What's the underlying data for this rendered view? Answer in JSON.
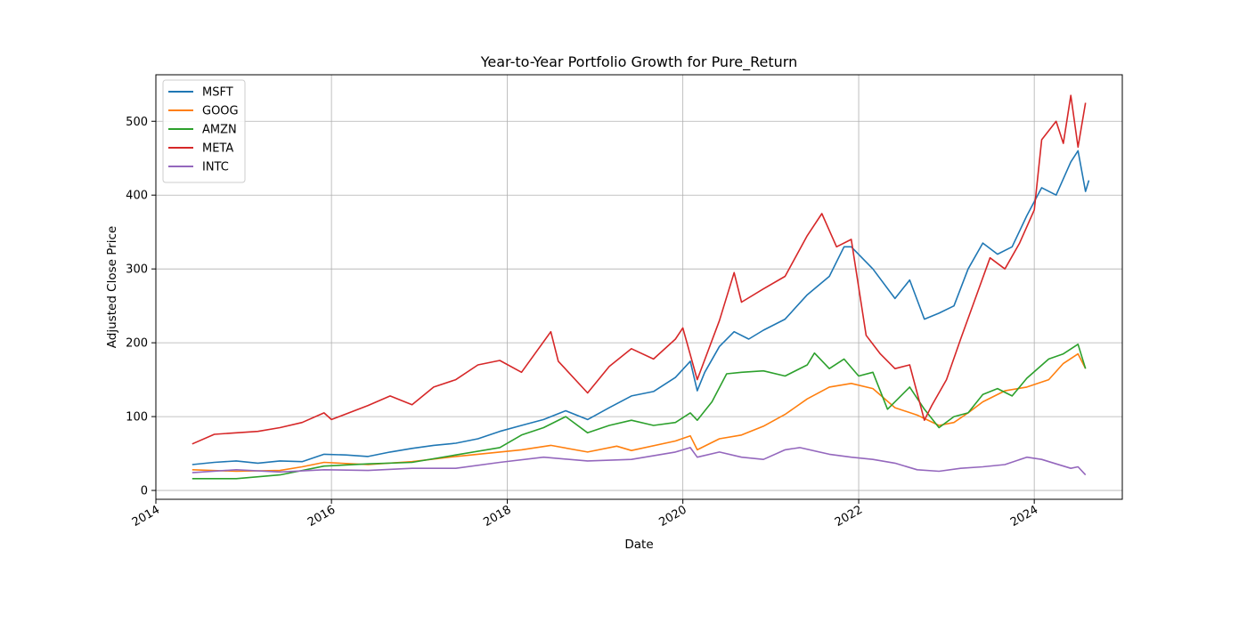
{
  "chart_data": {
    "type": "line",
    "title": "Year-to-Year Portfolio Growth for Pure_Return",
    "xlabel": "Date",
    "ylabel": "Adjusted Close Price",
    "xlim": [
      "2014-01-01",
      "2025-01-01"
    ],
    "ylim": [
      -12,
      563
    ],
    "x_ticks": [
      "2014",
      "2016",
      "2018",
      "2020",
      "2022",
      "2024"
    ],
    "y_ticks": [
      0,
      100,
      200,
      300,
      400,
      500
    ],
    "grid": true,
    "legend_position": "upper-left",
    "series": [
      {
        "name": "MSFT",
        "color": "#1f77b4",
        "points": [
          [
            "2014-06",
            35
          ],
          [
            "2014-09",
            38
          ],
          [
            "2014-12",
            40
          ],
          [
            "2015-03",
            37
          ],
          [
            "2015-06",
            40
          ],
          [
            "2015-09",
            39
          ],
          [
            "2015-12",
            49
          ],
          [
            "2016-03",
            48
          ],
          [
            "2016-06",
            46
          ],
          [
            "2016-09",
            52
          ],
          [
            "2016-12",
            57
          ],
          [
            "2017-03",
            61
          ],
          [
            "2017-06",
            64
          ],
          [
            "2017-09",
            70
          ],
          [
            "2017-12",
            80
          ],
          [
            "2018-03",
            88
          ],
          [
            "2018-06",
            96
          ],
          [
            "2018-09",
            108
          ],
          [
            "2018-12",
            96
          ],
          [
            "2019-03",
            112
          ],
          [
            "2019-06",
            128
          ],
          [
            "2019-09",
            134
          ],
          [
            "2019-12",
            153
          ],
          [
            "2020-02",
            175
          ],
          [
            "2020-03",
            135
          ],
          [
            "2020-04",
            160
          ],
          [
            "2020-06",
            195
          ],
          [
            "2020-08",
            215
          ],
          [
            "2020-10",
            205
          ],
          [
            "2020-12",
            217
          ],
          [
            "2021-03",
            232
          ],
          [
            "2021-06",
            265
          ],
          [
            "2021-09",
            290
          ],
          [
            "2021-11",
            330
          ],
          [
            "2021-12",
            330
          ],
          [
            "2022-03",
            300
          ],
          [
            "2022-06",
            260
          ],
          [
            "2022-08",
            285
          ],
          [
            "2022-10",
            232
          ],
          [
            "2022-12",
            240
          ],
          [
            "2023-02",
            250
          ],
          [
            "2023-04",
            300
          ],
          [
            "2023-06",
            335
          ],
          [
            "2023-08",
            320
          ],
          [
            "2023-10",
            330
          ],
          [
            "2023-12",
            372
          ],
          [
            "2024-02",
            410
          ],
          [
            "2024-04",
            400
          ],
          [
            "2024-06",
            445
          ],
          [
            "2024-07",
            460
          ],
          [
            "2024-08",
            405
          ],
          [
            "2024-08-15",
            420
          ]
        ]
      },
      {
        "name": "GOOG",
        "color": "#ff7f0e",
        "points": [
          [
            "2014-06",
            28
          ],
          [
            "2014-12",
            26
          ],
          [
            "2015-06",
            27
          ],
          [
            "2015-09",
            32
          ],
          [
            "2015-12",
            38
          ],
          [
            "2016-06",
            35
          ],
          [
            "2016-12",
            39
          ],
          [
            "2017-06",
            46
          ],
          [
            "2017-12",
            52
          ],
          [
            "2018-03",
            55
          ],
          [
            "2018-07",
            61
          ],
          [
            "2018-12",
            52
          ],
          [
            "2019-04",
            60
          ],
          [
            "2019-06",
            54
          ],
          [
            "2019-12",
            67
          ],
          [
            "2020-02",
            74
          ],
          [
            "2020-03",
            55
          ],
          [
            "2020-06",
            70
          ],
          [
            "2020-09",
            75
          ],
          [
            "2020-12",
            87
          ],
          [
            "2021-03",
            103
          ],
          [
            "2021-06",
            124
          ],
          [
            "2021-09",
            140
          ],
          [
            "2021-12",
            145
          ],
          [
            "2022-03",
            138
          ],
          [
            "2022-06",
            112
          ],
          [
            "2022-09",
            102
          ],
          [
            "2022-12",
            88
          ],
          [
            "2023-02",
            92
          ],
          [
            "2023-04",
            105
          ],
          [
            "2023-06",
            120
          ],
          [
            "2023-09",
            135
          ],
          [
            "2023-12",
            140
          ],
          [
            "2024-03",
            150
          ],
          [
            "2024-05",
            172
          ],
          [
            "2024-07",
            185
          ],
          [
            "2024-08",
            165
          ]
        ]
      },
      {
        "name": "AMZN",
        "color": "#2ca02c",
        "points": [
          [
            "2014-06",
            16
          ],
          [
            "2014-12",
            16
          ],
          [
            "2015-06",
            21
          ],
          [
            "2015-12",
            33
          ],
          [
            "2016-06",
            36
          ],
          [
            "2016-12",
            38
          ],
          [
            "2017-06",
            48
          ],
          [
            "2017-12",
            58
          ],
          [
            "2018-03",
            75
          ],
          [
            "2018-06",
            85
          ],
          [
            "2018-09",
            100
          ],
          [
            "2018-12",
            78
          ],
          [
            "2019-03",
            88
          ],
          [
            "2019-06",
            95
          ],
          [
            "2019-09",
            88
          ],
          [
            "2019-12",
            92
          ],
          [
            "2020-02",
            105
          ],
          [
            "2020-03",
            95
          ],
          [
            "2020-05",
            120
          ],
          [
            "2020-07",
            158
          ],
          [
            "2020-09",
            160
          ],
          [
            "2020-12",
            162
          ],
          [
            "2021-03",
            155
          ],
          [
            "2021-06",
            170
          ],
          [
            "2021-07",
            186
          ],
          [
            "2021-09",
            165
          ],
          [
            "2021-11",
            178
          ],
          [
            "2022-01",
            155
          ],
          [
            "2022-03",
            160
          ],
          [
            "2022-05",
            110
          ],
          [
            "2022-08",
            140
          ],
          [
            "2022-10",
            110
          ],
          [
            "2022-12",
            85
          ],
          [
            "2023-02",
            100
          ],
          [
            "2023-04",
            105
          ],
          [
            "2023-06",
            130
          ],
          [
            "2023-08",
            138
          ],
          [
            "2023-10",
            128
          ],
          [
            "2023-12",
            152
          ],
          [
            "2024-03",
            178
          ],
          [
            "2024-05",
            185
          ],
          [
            "2024-07",
            198
          ],
          [
            "2024-08",
            165
          ]
        ]
      },
      {
        "name": "META",
        "color": "#d62728",
        "points": [
          [
            "2014-06",
            63
          ],
          [
            "2014-09",
            76
          ],
          [
            "2014-12",
            78
          ],
          [
            "2015-03",
            80
          ],
          [
            "2015-06",
            85
          ],
          [
            "2015-09",
            92
          ],
          [
            "2015-12",
            105
          ],
          [
            "2016-01",
            96
          ],
          [
            "2016-06",
            115
          ],
          [
            "2016-09",
            128
          ],
          [
            "2016-12",
            116
          ],
          [
            "2017-03",
            140
          ],
          [
            "2017-06",
            150
          ],
          [
            "2017-09",
            170
          ],
          [
            "2017-12",
            176
          ],
          [
            "2018-03",
            160
          ],
          [
            "2018-07",
            215
          ],
          [
            "2018-08",
            175
          ],
          [
            "2018-12",
            132
          ],
          [
            "2019-03",
            168
          ],
          [
            "2019-06",
            192
          ],
          [
            "2019-09",
            178
          ],
          [
            "2019-12",
            205
          ],
          [
            "2020-01",
            220
          ],
          [
            "2020-03",
            150
          ],
          [
            "2020-06",
            230
          ],
          [
            "2020-08",
            295
          ],
          [
            "2020-09",
            255
          ],
          [
            "2020-12",
            273
          ],
          [
            "2021-03",
            290
          ],
          [
            "2021-06",
            345
          ],
          [
            "2021-08",
            375
          ],
          [
            "2021-10",
            330
          ],
          [
            "2021-12",
            340
          ],
          [
            "2022-02",
            210
          ],
          [
            "2022-04",
            185
          ],
          [
            "2022-06",
            165
          ],
          [
            "2022-08",
            170
          ],
          [
            "2022-10",
            95
          ],
          [
            "2022-11",
            115
          ],
          [
            "2023-01",
            150
          ],
          [
            "2023-03",
            205
          ],
          [
            "2023-05",
            260
          ],
          [
            "2023-07",
            315
          ],
          [
            "2023-09",
            300
          ],
          [
            "2023-11",
            335
          ],
          [
            "2024-01",
            380
          ],
          [
            "2024-02",
            475
          ],
          [
            "2024-04",
            500
          ],
          [
            "2024-05",
            470
          ],
          [
            "2024-06",
            535
          ],
          [
            "2024-07",
            465
          ],
          [
            "2024-08",
            525
          ]
        ]
      },
      {
        "name": "INTC",
        "color": "#9467bd",
        "points": [
          [
            "2014-06",
            24
          ],
          [
            "2014-12",
            28
          ],
          [
            "2015-06",
            25
          ],
          [
            "2015-12",
            28
          ],
          [
            "2016-06",
            27
          ],
          [
            "2016-12",
            30
          ],
          [
            "2017-06",
            30
          ],
          [
            "2017-12",
            38
          ],
          [
            "2018-06",
            45
          ],
          [
            "2018-12",
            40
          ],
          [
            "2019-06",
            42
          ],
          [
            "2019-12",
            52
          ],
          [
            "2020-02",
            58
          ],
          [
            "2020-03",
            45
          ],
          [
            "2020-06",
            52
          ],
          [
            "2020-09",
            45
          ],
          [
            "2020-12",
            42
          ],
          [
            "2021-03",
            55
          ],
          [
            "2021-05",
            58
          ],
          [
            "2021-09",
            49
          ],
          [
            "2021-12",
            45
          ],
          [
            "2022-03",
            42
          ],
          [
            "2022-06",
            37
          ],
          [
            "2022-09",
            28
          ],
          [
            "2022-12",
            26
          ],
          [
            "2023-03",
            30
          ],
          [
            "2023-06",
            32
          ],
          [
            "2023-09",
            35
          ],
          [
            "2023-12",
            45
          ],
          [
            "2024-02",
            42
          ],
          [
            "2024-04",
            36
          ],
          [
            "2024-06",
            30
          ],
          [
            "2024-07",
            32
          ],
          [
            "2024-08",
            21
          ]
        ]
      }
    ]
  }
}
